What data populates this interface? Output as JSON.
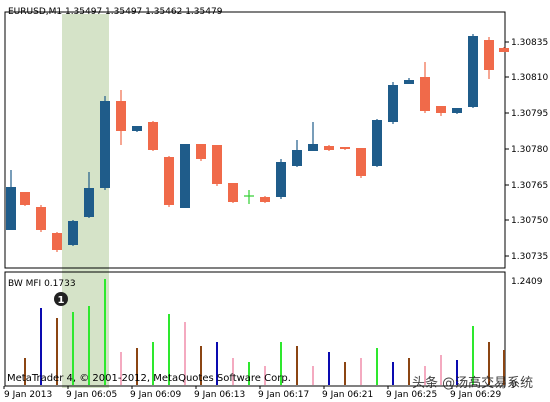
{
  "window": {
    "symbol_label": "EURUSD,M1  1.35497 1.35497 1.35462 1.35479"
  },
  "main_chart": {
    "y_axis_labels": [
      "1.30835",
      "1.30810",
      "1.30795",
      "1.30780",
      "1.30765",
      "1.30750",
      "1.30735"
    ]
  },
  "indicator": {
    "label": "BW MFI 0.1733",
    "axis_top": "1.2409",
    "axis_bottom": "0",
    "marker": "1"
  },
  "footer": {
    "copyright": "MetaTrader 4, © 2001-2012, MetaQuotes Software Corp.",
    "watermark": "头条 @汤高交易系统"
  },
  "x_axis_labels": [
    "9 Jan 2013",
    "9 Jan 06:05",
    "9 Jan 06:09",
    "9 Jan 06:13",
    "9 Jan 06:17",
    "9 Jan 06:21",
    "9 Jan 06:25",
    "9 Jan 06:29"
  ],
  "colors": {
    "bull": "#1f5c8a",
    "bear": "#f06a4a",
    "doji": "#2fcf2f",
    "highlight": "#d5e3c8",
    "mfi_green": "#2ee82e",
    "mfi_blue": "#0a0ab0",
    "mfi_brown": "#8b4513",
    "mfi_pink": "#f4aac0"
  }
}
